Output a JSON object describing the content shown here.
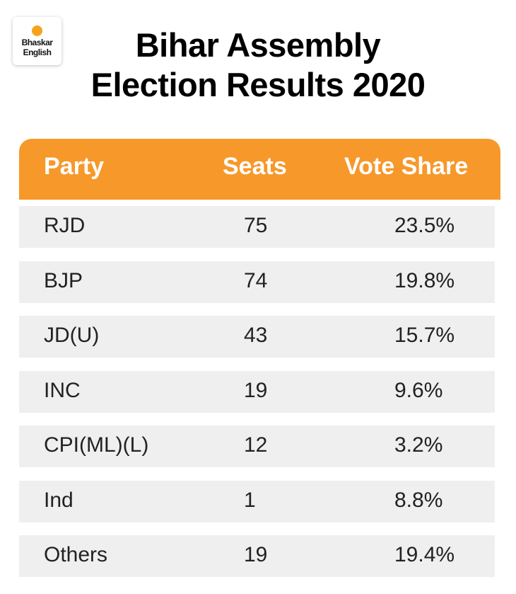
{
  "logo": {
    "line1": "Bhaskar",
    "line2": "English"
  },
  "title": {
    "line1": "Bihar Assembly",
    "line2": "Election Results 2020"
  },
  "colors": {
    "header": "#f7982a",
    "row": "#efefef"
  },
  "chart_data": {
    "type": "table",
    "title": "Bihar Assembly Election Results 2020",
    "columns": [
      "Party",
      "Seats",
      "Vote Share"
    ],
    "rows": [
      [
        "RJD",
        "75",
        "23.5%"
      ],
      [
        "BJP",
        "74",
        "19.8%"
      ],
      [
        "JD(U)",
        "43",
        "15.7%"
      ],
      [
        "INC",
        "19",
        "9.6%"
      ],
      [
        "CPI(ML)(L)",
        "12",
        "3.2%"
      ],
      [
        "Ind",
        "1",
        "8.8%"
      ],
      [
        "Others",
        "19",
        "19.4%"
      ]
    ]
  }
}
